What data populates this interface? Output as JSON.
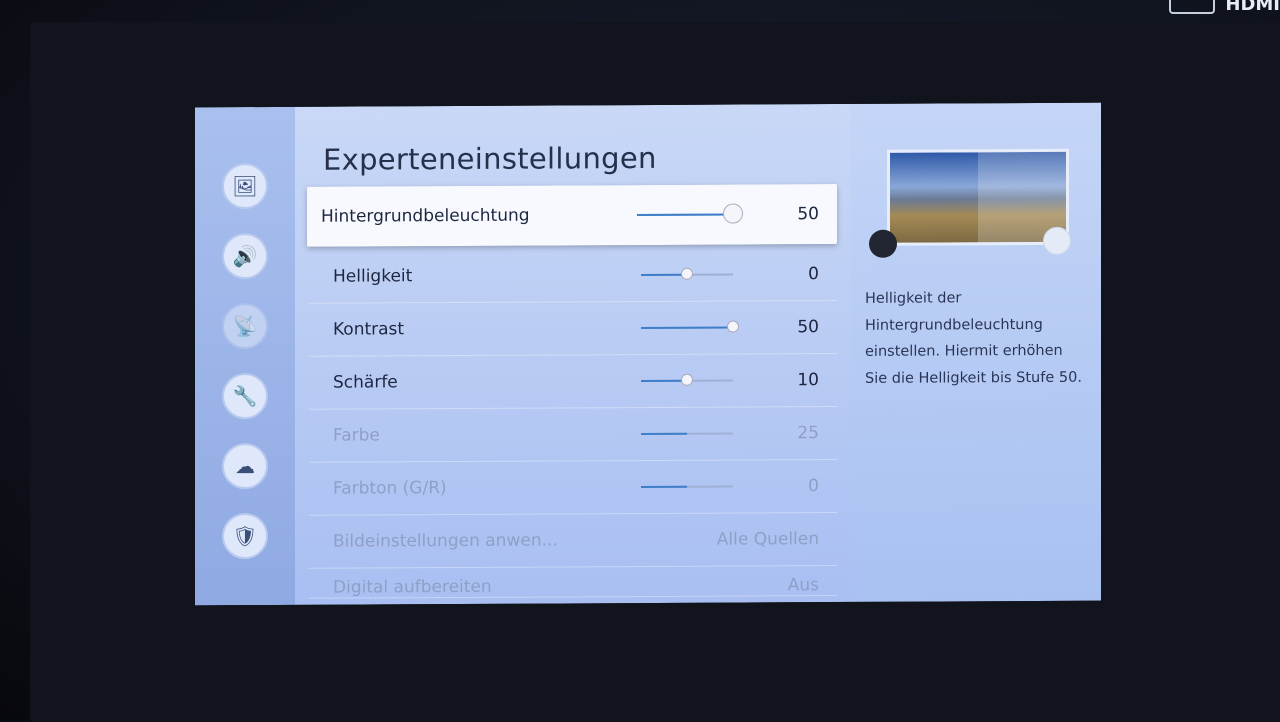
{
  "source_label": "HDMI",
  "sidebar": {
    "items": [
      {
        "icon": "picture-icon",
        "glyph": "🖼"
      },
      {
        "icon": "sound-icon",
        "glyph": "🔊"
      },
      {
        "icon": "broadcast-icon",
        "glyph": "📡"
      },
      {
        "icon": "wrench-icon",
        "glyph": "🔧"
      },
      {
        "icon": "support-cloud-icon",
        "glyph": "☁"
      },
      {
        "icon": "shield-icon",
        "glyph": "🛡"
      }
    ]
  },
  "main": {
    "title": "Experteneinstellungen",
    "rows": [
      {
        "label": "Hintergrundbeleuchtung",
        "value": "50",
        "slider": 1.0,
        "selected": true
      },
      {
        "label": "Helligkeit",
        "value": "0",
        "slider": 0.5
      },
      {
        "label": "Kontrast",
        "value": "50",
        "slider": 1.0
      },
      {
        "label": "Schärfe",
        "value": "10",
        "slider": 0.5
      },
      {
        "label": "Farbe",
        "value": "25",
        "slider": 0.5,
        "disabled": true
      },
      {
        "label": "Farbton (G/R)",
        "value": "0",
        "slider": 0.5,
        "disabled": true
      },
      {
        "label": "Bildeinstellungen anwen...",
        "value": "Alle Quellen",
        "disabled": true
      },
      {
        "label": "Digital aufbereiten",
        "value": "Aus",
        "disabled": true
      }
    ]
  },
  "help": {
    "description": "Helligkeit der Hintergrundbeleuchtung einstellen. Hiermit erhöhen Sie die Helligkeit bis Stufe 50."
  }
}
